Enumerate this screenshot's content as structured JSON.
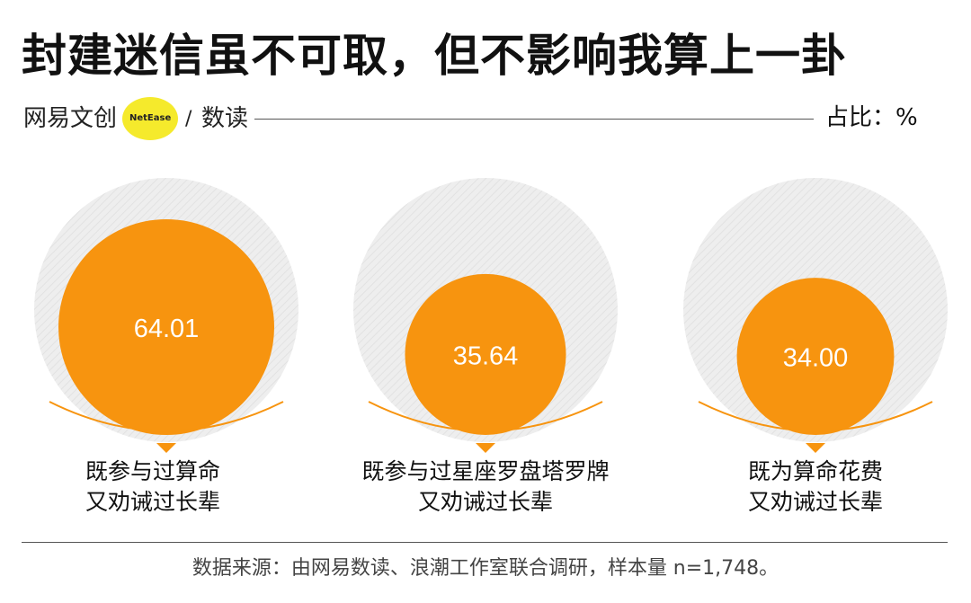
{
  "header": {
    "title": "封建迷信虽不可取，但不影响我算上一卦",
    "brand_text": "网易文创",
    "brand_en": "NetEase",
    "brand_slash": "/",
    "brand_shudu": "数读",
    "unit": "占比：%"
  },
  "colors": {
    "accent": "#f7940f",
    "background_circle": "#eeeeee",
    "brand_yellow": "#f5ea2c"
  },
  "chart_data": {
    "type": "proportional-circles",
    "unit": "占比：%",
    "categories": [
      {
        "line1": "既参与过算命",
        "line2": "又劝诫过长辈",
        "value": 64.01,
        "label": "64.01"
      },
      {
        "line1": "既参与过星座罗盘塔罗牌",
        "line2": "又劝诫过长辈",
        "value": 35.64,
        "label": "35.64"
      },
      {
        "line1": "既为算命花费",
        "line2": "又劝诫过长辈",
        "value": 34.0,
        "label": "34.00"
      }
    ]
  },
  "footer": {
    "source": "数据来源：由网易数读、浪潮工作室联合调研，样本量 n=1,748。"
  }
}
